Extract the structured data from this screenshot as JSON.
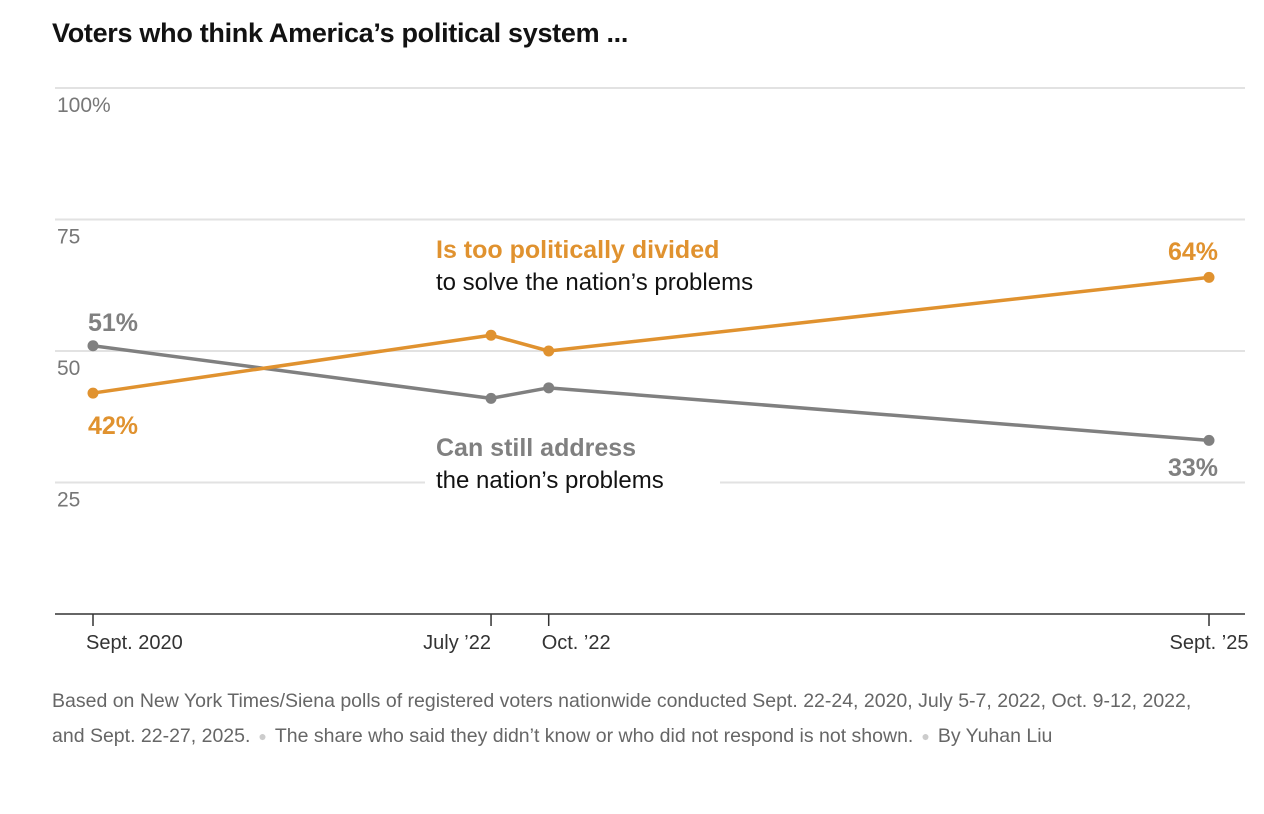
{
  "chart_data": {
    "type": "line",
    "title": "Voters who think America’s political system ...",
    "x_ticks": [
      {
        "label": "Sept. 2020",
        "month": 0
      },
      {
        "label": "July ’22",
        "month": 21.4
      },
      {
        "label": "Oct. ’22",
        "month": 24.5
      },
      {
        "label": "Sept. ’25",
        "month": 60
      }
    ],
    "y_ticks": [
      {
        "value": 100,
        "label": "100%"
      },
      {
        "value": 75,
        "label": "75"
      },
      {
        "value": 50,
        "label": "50"
      },
      {
        "value": 25,
        "label": "25"
      }
    ],
    "ylim": [
      0,
      100
    ],
    "series": [
      {
        "name": "Is too politically divided",
        "subtitle": "to solve the nation’s problems",
        "color": "#e0922f",
        "values": [
          42,
          53,
          50,
          64
        ],
        "start_label": "42%",
        "end_label": "64%"
      },
      {
        "name": "Can still address",
        "subtitle": "the nation’s problems",
        "color": "#808080",
        "values": [
          51,
          41,
          43,
          33
        ],
        "start_label": "51%",
        "end_label": "33%"
      }
    ]
  },
  "note": {
    "text1": "Based on New York Times/Siena polls of registered voters nationwide conducted Sept. 22-24, 2020, July 5-7, 2022, Oct. 9-12, 2022, and Sept. 22-27, 2025.",
    "text2": "The share who said they didn’t know or who did not respond is not shown.",
    "byline": "By Yuhan Liu"
  }
}
